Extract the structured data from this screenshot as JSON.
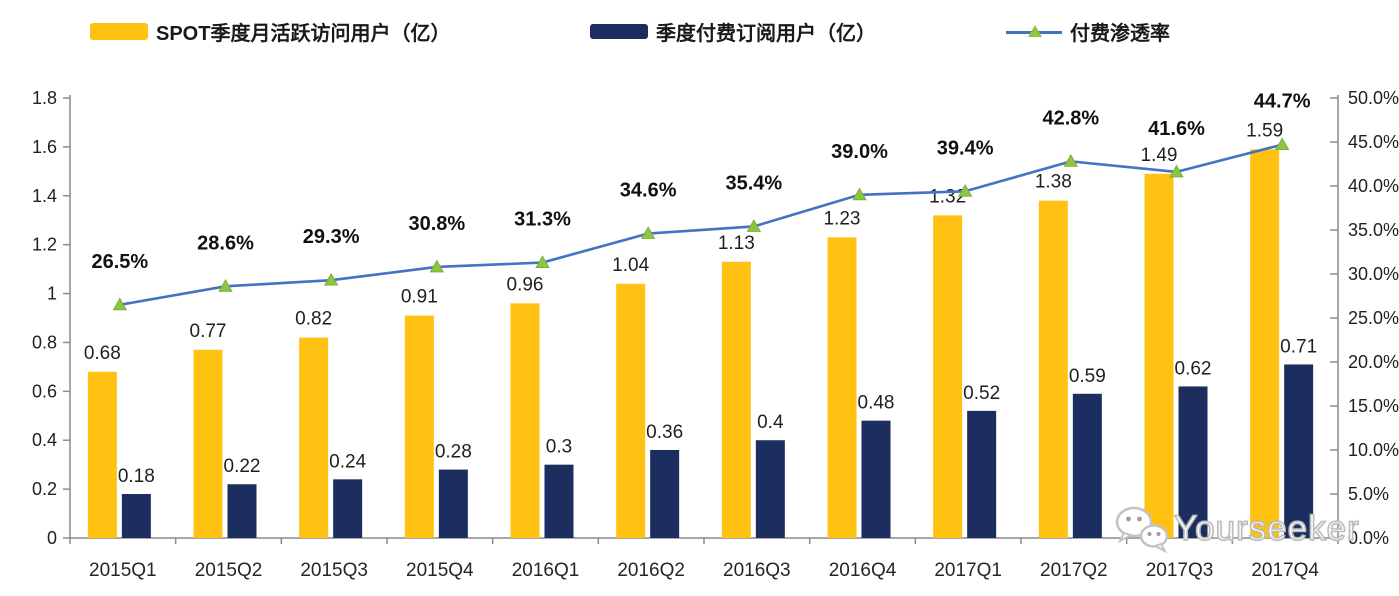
{
  "legend": {
    "items": [
      {
        "label": "SPOT季度月活跃访问用户（亿）",
        "color": "#FFC112",
        "swatch": "bar"
      },
      {
        "label": "季度付费订阅用户（亿）",
        "color": "#1B2E5F",
        "swatch": "bar"
      },
      {
        "label": "付费渗透率",
        "color": "#4472C4",
        "marker_color": "#8CC63F",
        "swatch": "line"
      }
    ]
  },
  "chart_data": {
    "type": "bar+line",
    "categories": [
      "2015Q1",
      "2015Q2",
      "2015Q3",
      "2015Q4",
      "2016Q1",
      "2016Q2",
      "2016Q3",
      "2016Q4",
      "2017Q1",
      "2017Q2",
      "2017Q3",
      "2017Q4"
    ],
    "series": [
      {
        "name": "SPOT季度月活跃访问用户（亿）",
        "type": "bar",
        "axis": "left",
        "color": "#FFC112",
        "values": [
          0.68,
          0.77,
          0.82,
          0.91,
          0.96,
          1.04,
          1.13,
          1.23,
          1.32,
          1.38,
          1.49,
          1.59
        ],
        "labels": [
          "0.68",
          "0.77",
          "0.82",
          "0.91",
          "0.96",
          "1.04",
          "1.13",
          "1.23",
          "1.32",
          "1.38",
          "1.49",
          "1.59"
        ]
      },
      {
        "name": "季度付费订阅用户（亿）",
        "type": "bar",
        "axis": "left",
        "color": "#1B2E5F",
        "values": [
          0.18,
          0.22,
          0.24,
          0.28,
          0.3,
          0.36,
          0.4,
          0.48,
          0.52,
          0.59,
          0.62,
          0.71
        ],
        "labels": [
          "0.18",
          "0.22",
          "0.24",
          "0.28",
          "0.3",
          "0.36",
          "0.4",
          "0.48",
          "0.52",
          "0.59",
          "0.62",
          "0.71"
        ]
      },
      {
        "name": "付费渗透率",
        "type": "line",
        "axis": "right",
        "color": "#4472C4",
        "marker": "triangle",
        "marker_color": "#8CC63F",
        "values": [
          26.5,
          28.6,
          29.3,
          30.8,
          31.3,
          34.6,
          35.4,
          39.0,
          39.4,
          42.8,
          41.6,
          44.7
        ],
        "labels": [
          "26.5%",
          "28.6%",
          "29.3%",
          "30.8%",
          "31.3%",
          "34.6%",
          "35.4%",
          "39.0%",
          "39.4%",
          "42.8%",
          "41.6%",
          "44.7%"
        ]
      }
    ],
    "left_axis": {
      "min": 0,
      "max": 1.8,
      "tick_labels": [
        "1.8",
        "1.6",
        "1.4",
        "1.2",
        "1",
        "0.8",
        "0.6",
        "0.4",
        "0.2",
        "0"
      ]
    },
    "right_axis": {
      "min": 0,
      "max": 50,
      "tick_labels": [
        "50.0%",
        "45.0%",
        "40.0%",
        "35.0%",
        "30.0%",
        "25.0%",
        "20.0%",
        "15.0%",
        "10.0%",
        "5.0%",
        "0.0%"
      ]
    },
    "grid": false,
    "legend_position": "top"
  },
  "watermark": {
    "text": "Yourseeker",
    "icon": "wechat-icon"
  },
  "colors": {
    "bar_mau": "#FFC112",
    "bar_subs": "#1B2E5F",
    "line": "#4472C4",
    "marker": "#8CC63F",
    "marker_edge": "#79A83B",
    "axis": "#8c8c8c",
    "text": "#1f1f1f"
  }
}
